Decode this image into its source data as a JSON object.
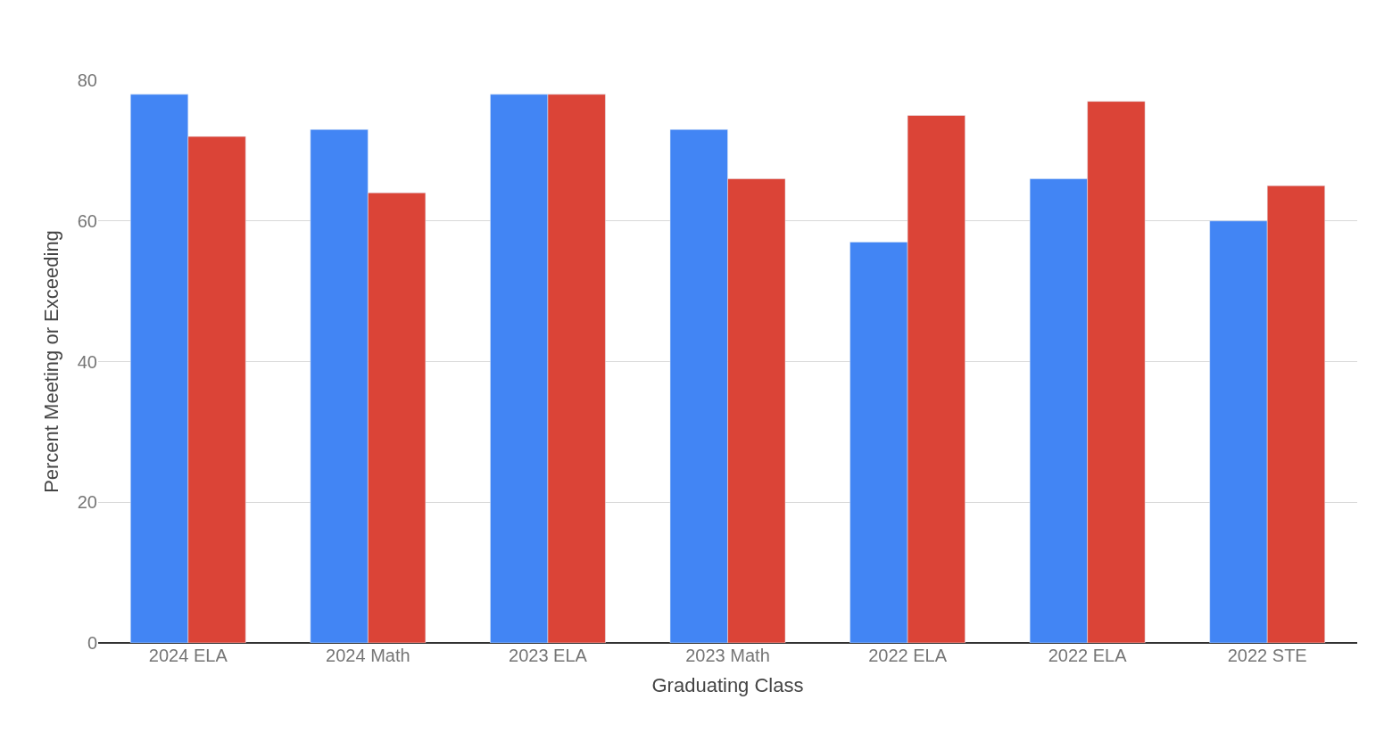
{
  "chart_data": {
    "type": "bar",
    "xlabel": "Graduating Class",
    "ylabel": "Percent Meeting or Exceeding",
    "categories": [
      "2024 ELA",
      "2024 Math",
      "2023 ELA",
      "2023 Math",
      "2022 ELA",
      "2022 ELA",
      "2022 STE"
    ],
    "series": [
      {
        "color": "#4285f4",
        "values": [
          78,
          73,
          78,
          73,
          57,
          66,
          60
        ]
      },
      {
        "color": "#db4437",
        "values": [
          72,
          64,
          78,
          66,
          75,
          77,
          65
        ]
      }
    ],
    "ylim": [
      0,
      80
    ],
    "yticks": [
      0,
      20,
      40,
      60,
      80
    ],
    "grid": "y"
  }
}
